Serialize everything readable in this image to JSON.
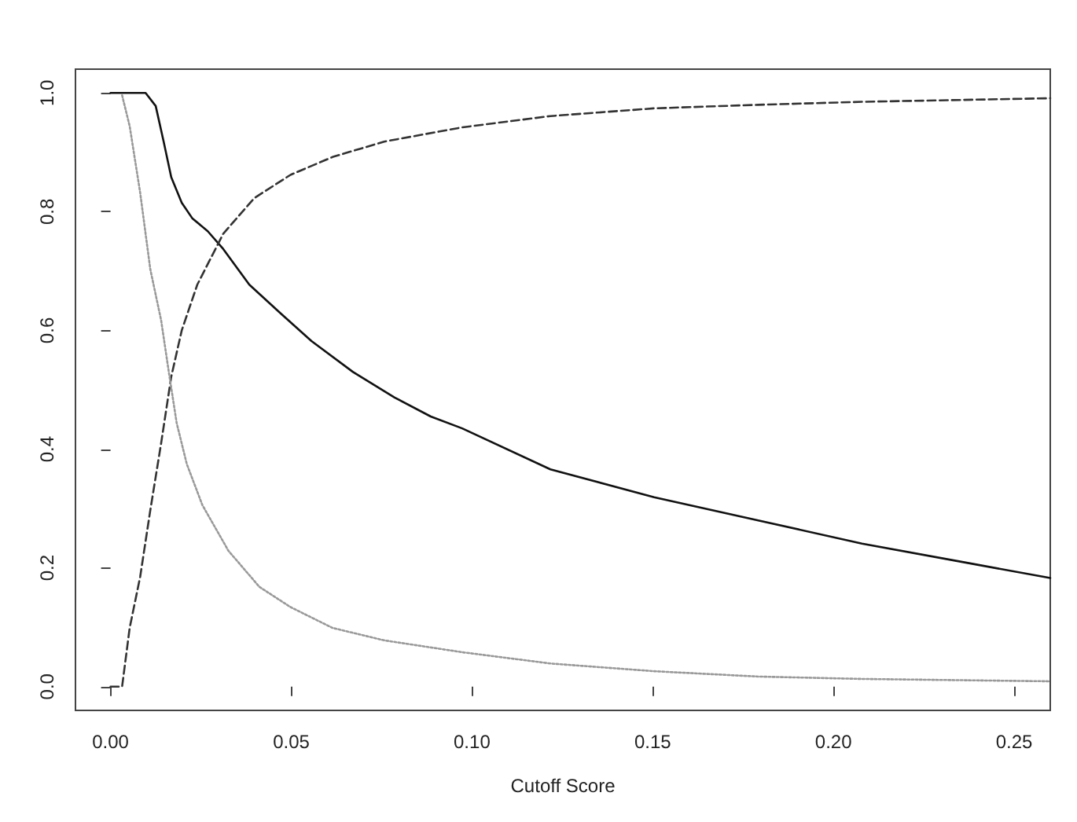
{
  "chart_data": {
    "type": "line",
    "xlabel": "Cutoff Score",
    "xlim": [
      -0.0097,
      0.26
    ],
    "ylim": [
      -0.04,
      1.04
    ],
    "xticks": [
      {
        "value": 0,
        "label": "0.00"
      },
      {
        "value": 0.05,
        "label": "0.05"
      },
      {
        "value": 0.1,
        "label": "0.10"
      },
      {
        "value": 0.15,
        "label": "0.15"
      },
      {
        "value": 0.2,
        "label": "0.20"
      },
      {
        "value": 0.25,
        "label": "0.25"
      }
    ],
    "yticks": [
      {
        "value": 0,
        "label": "0.0"
      },
      {
        "value": 0.2,
        "label": "0.2"
      },
      {
        "value": 0.4,
        "label": "0.4"
      },
      {
        "value": 0.6,
        "label": "0.6"
      },
      {
        "value": 0.8,
        "label": "0.8"
      },
      {
        "value": 1,
        "label": "1.0"
      }
    ],
    "grid": false,
    "marker": "none",
    "series": [
      {
        "color": "#111111",
        "line_style": "solid",
        "x": [
          0,
          0.0097,
          0.0125,
          0.0147,
          0.0168,
          0.0197,
          0.0226,
          0.0269,
          0.0312,
          0.0384,
          0.047,
          0.0556,
          0.0671,
          0.0786,
          0.0886,
          0.0973,
          0.1217,
          0.1504,
          0.1792,
          0.2079,
          0.2366,
          0.26
        ],
        "values": [
          1,
          1,
          0.978,
          0.918,
          0.858,
          0.815,
          0.789,
          0.767,
          0.737,
          0.677,
          0.629,
          0.582,
          0.53,
          0.487,
          0.455,
          0.435,
          0.366,
          0.319,
          0.28,
          0.241,
          0.209,
          0.183
        ]
      },
      {
        "color": "#333333",
        "line_style": "dashed",
        "x": [
          0,
          0.0032,
          0.0053,
          0.0082,
          0.011,
          0.014,
          0.0168,
          0.0197,
          0.024,
          0.0312,
          0.0398,
          0.0498,
          0.0614,
          0.0757,
          0.0973,
          0.1217,
          0.1504,
          0.1792,
          0.2079,
          0.26
        ],
        "values": [
          0,
          0,
          0.099,
          0.185,
          0.297,
          0.41,
          0.522,
          0.6,
          0.677,
          0.763,
          0.823,
          0.862,
          0.892,
          0.918,
          0.942,
          0.961,
          0.974,
          0.98,
          0.985,
          0.991
        ]
      },
      {
        "color": "#999999",
        "line_style": "dotted",
        "x": [
          0.0032,
          0.0053,
          0.0082,
          0.011,
          0.014,
          0.0161,
          0.0183,
          0.0211,
          0.0254,
          0.0326,
          0.0412,
          0.0498,
          0.0614,
          0.0757,
          0.0973,
          0.1217,
          0.1504,
          0.1792,
          0.2079,
          0.26
        ],
        "values": [
          0.996,
          0.944,
          0.832,
          0.703,
          0.617,
          0.531,
          0.444,
          0.375,
          0.306,
          0.229,
          0.168,
          0.134,
          0.099,
          0.078,
          0.058,
          0.039,
          0.026,
          0.017,
          0.013,
          0.009
        ]
      }
    ]
  }
}
